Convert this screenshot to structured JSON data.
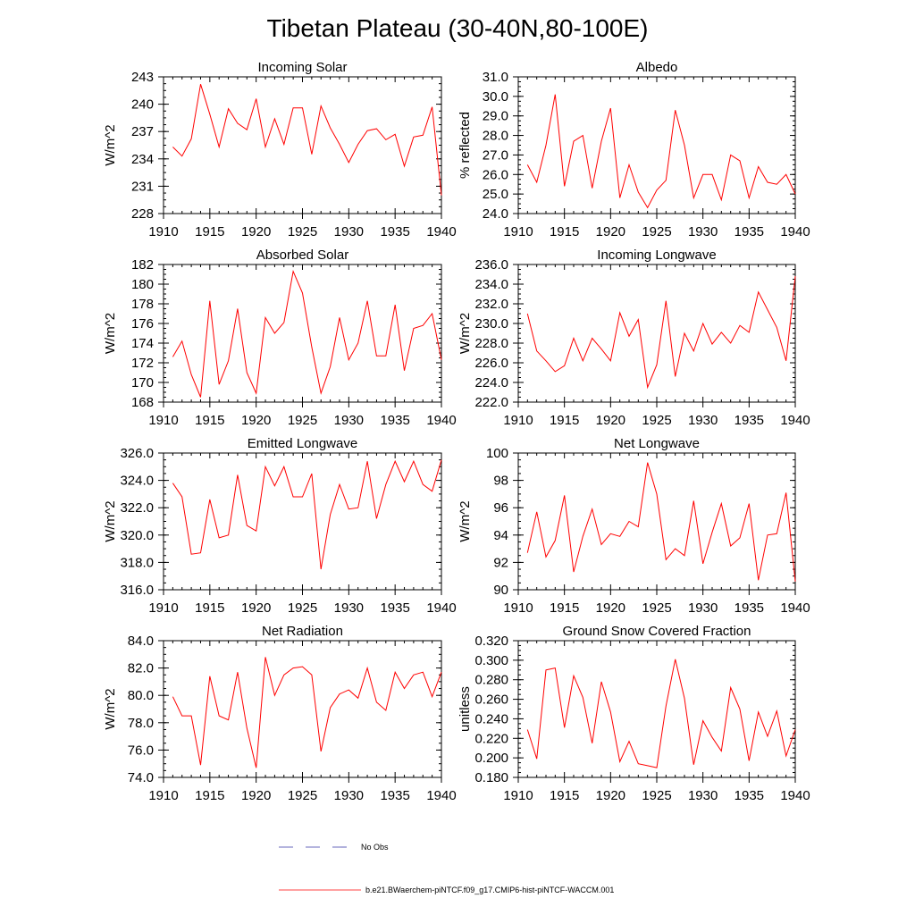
{
  "figure": {
    "title": "Tibetan Plateau (30-40N,80-100E)"
  },
  "legend": {
    "entries": [
      {
        "label": "No Obs",
        "color": "#3a3aa8",
        "style": "dashed"
      },
      {
        "label": "b.e21.BWaerchem-piNTCF.f09_g17.CMIP6-hist-piNTCF-WACCM.001",
        "color": "#ff0000",
        "style": "solid"
      }
    ]
  },
  "chart_data": [
    {
      "type": "line",
      "title": "Incoming Solar",
      "ylabel": "W/m^2",
      "xlim": [
        1910,
        1940
      ],
      "ylim": [
        228,
        243
      ],
      "xticks": [
        "1910",
        "1915",
        "1920",
        "1925",
        "1930",
        "1935",
        "1940"
      ],
      "yticks": [
        "228",
        "231",
        "234",
        "237",
        "240",
        "243"
      ],
      "x": [
        1911,
        1912,
        1913,
        1914,
        1915,
        1916,
        1917,
        1918,
        1919,
        1920,
        1921,
        1922,
        1923,
        1924,
        1925,
        1926,
        1927,
        1928,
        1929,
        1930,
        1931,
        1932,
        1933,
        1934,
        1935,
        1936,
        1937,
        1938,
        1939,
        1940
      ],
      "series": [
        {
          "color": "#ff0000",
          "values": [
            235.3,
            234.3,
            236.2,
            242.2,
            238.9,
            235.3,
            239.5,
            237.9,
            237.2,
            240.6,
            235.3,
            238.4,
            235.6,
            239.6,
            239.6,
            234.5,
            239.8,
            237.4,
            235.6,
            233.6,
            235.6,
            237.1,
            237.3,
            236.1,
            236.7,
            233.2,
            236.4,
            236.6,
            239.7,
            230.0
          ]
        }
      ]
    },
    {
      "type": "line",
      "title": "Albedo",
      "ylabel": "% reflected",
      "xlim": [
        1910,
        1940
      ],
      "ylim": [
        24.0,
        31.0
      ],
      "xticks": [
        "1910",
        "1915",
        "1920",
        "1925",
        "1930",
        "1935",
        "1940"
      ],
      "yticks": [
        "24.0",
        "25.0",
        "26.0",
        "27.0",
        "28.0",
        "29.0",
        "30.0",
        "31.0"
      ],
      "x": [
        1911,
        1912,
        1913,
        1914,
        1915,
        1916,
        1917,
        1918,
        1919,
        1920,
        1921,
        1922,
        1923,
        1924,
        1925,
        1926,
        1927,
        1928,
        1929,
        1930,
        1931,
        1932,
        1933,
        1934,
        1935,
        1936,
        1937,
        1938,
        1939,
        1940
      ],
      "series": [
        {
          "color": "#ff0000",
          "values": [
            26.5,
            25.6,
            27.5,
            30.1,
            25.4,
            27.7,
            28.0,
            25.3,
            27.7,
            29.4,
            24.8,
            26.5,
            25.1,
            24.3,
            25.2,
            25.7,
            29.3,
            27.5,
            24.8,
            26.0,
            26.0,
            24.7,
            27.0,
            26.7,
            24.8,
            26.4,
            25.6,
            25.5,
            26.0,
            25.0
          ]
        }
      ]
    },
    {
      "type": "line",
      "title": "Absorbed Solar",
      "ylabel": "W/m^2",
      "xlim": [
        1910,
        1940
      ],
      "ylim": [
        168,
        182
      ],
      "xticks": [
        "1910",
        "1915",
        "1920",
        "1925",
        "1930",
        "1935",
        "1940"
      ],
      "yticks": [
        "168",
        "170",
        "172",
        "174",
        "176",
        "178",
        "180",
        "182"
      ],
      "x": [
        1911,
        1912,
        1913,
        1914,
        1915,
        1916,
        1917,
        1918,
        1919,
        1920,
        1921,
        1922,
        1923,
        1924,
        1925,
        1926,
        1927,
        1928,
        1929,
        1930,
        1931,
        1932,
        1933,
        1934,
        1935,
        1936,
        1937,
        1938,
        1939,
        1940
      ],
      "series": [
        {
          "color": "#ff0000",
          "values": [
            172.6,
            174.2,
            170.8,
            168.5,
            178.3,
            169.8,
            172.2,
            177.5,
            171.0,
            168.9,
            176.6,
            175.0,
            176.1,
            181.3,
            179.1,
            173.6,
            168.9,
            171.6,
            176.6,
            172.3,
            174.0,
            178.3,
            172.7,
            172.7,
            177.9,
            171.2,
            175.5,
            175.8,
            177.0,
            172.3
          ]
        }
      ]
    },
    {
      "type": "line",
      "title": "Incoming Longwave",
      "ylabel": "W/m^2",
      "xlim": [
        1910,
        1940
      ],
      "ylim": [
        222.0,
        236.0
      ],
      "xticks": [
        "1910",
        "1915",
        "1920",
        "1925",
        "1930",
        "1935",
        "1940"
      ],
      "yticks": [
        "222.0",
        "224.0",
        "226.0",
        "228.0",
        "230.0",
        "232.0",
        "234.0",
        "236.0"
      ],
      "x": [
        1911,
        1912,
        1913,
        1914,
        1915,
        1916,
        1917,
        1918,
        1919,
        1920,
        1921,
        1922,
        1923,
        1924,
        1925,
        1926,
        1927,
        1928,
        1929,
        1930,
        1931,
        1932,
        1933,
        1934,
        1935,
        1936,
        1937,
        1938,
        1939,
        1940
      ],
      "series": [
        {
          "color": "#ff0000",
          "values": [
            231.0,
            227.2,
            226.2,
            225.1,
            225.7,
            228.5,
            226.2,
            228.5,
            227.4,
            226.2,
            231.1,
            228.7,
            230.4,
            223.5,
            225.8,
            232.3,
            224.6,
            229.0,
            227.2,
            230.0,
            227.9,
            229.1,
            228.0,
            229.8,
            229.1,
            233.2,
            231.4,
            229.6,
            226.2,
            234.8
          ]
        }
      ]
    },
    {
      "type": "line",
      "title": "Emitted Longwave",
      "ylabel": "W/m^2",
      "xlim": [
        1910,
        1940
      ],
      "ylim": [
        316.0,
        326.0
      ],
      "xticks": [
        "1910",
        "1915",
        "1920",
        "1925",
        "1930",
        "1935",
        "1940"
      ],
      "yticks": [
        "316.0",
        "318.0",
        "320.0",
        "322.0",
        "324.0",
        "326.0"
      ],
      "x": [
        1911,
        1912,
        1913,
        1914,
        1915,
        1916,
        1917,
        1918,
        1919,
        1920,
        1921,
        1922,
        1923,
        1924,
        1925,
        1926,
        1927,
        1928,
        1929,
        1930,
        1931,
        1932,
        1933,
        1934,
        1935,
        1936,
        1937,
        1938,
        1939,
        1940
      ],
      "series": [
        {
          "color": "#ff0000",
          "values": [
            323.8,
            322.8,
            318.6,
            318.7,
            322.6,
            319.8,
            320.0,
            324.4,
            320.7,
            320.3,
            325.0,
            323.6,
            325.0,
            322.8,
            322.8,
            324.5,
            317.5,
            321.5,
            323.7,
            321.9,
            322.0,
            325.4,
            321.2,
            323.7,
            325.4,
            323.9,
            325.4,
            323.7,
            323.2,
            325.5
          ]
        }
      ]
    },
    {
      "type": "line",
      "title": "Net Longwave",
      "ylabel": "W/m^2",
      "xlim": [
        1910,
        1940
      ],
      "ylim": [
        90,
        100
      ],
      "xticks": [
        "1910",
        "1915",
        "1920",
        "1925",
        "1930",
        "1935",
        "1940"
      ],
      "yticks": [
        "90",
        "92",
        "94",
        "96",
        "98",
        "100"
      ],
      "x": [
        1911,
        1912,
        1913,
        1914,
        1915,
        1916,
        1917,
        1918,
        1919,
        1920,
        1921,
        1922,
        1923,
        1924,
        1925,
        1926,
        1927,
        1928,
        1929,
        1930,
        1931,
        1932,
        1933,
        1934,
        1935,
        1936,
        1937,
        1938,
        1939,
        1940
      ],
      "series": [
        {
          "color": "#ff0000",
          "values": [
            92.7,
            95.7,
            92.4,
            93.6,
            96.9,
            91.3,
            93.9,
            95.9,
            93.3,
            94.1,
            93.9,
            95.0,
            94.6,
            99.3,
            97.0,
            92.2,
            93.0,
            92.5,
            96.5,
            91.9,
            94.2,
            96.3,
            93.2,
            93.8,
            96.3,
            90.7,
            94.0,
            94.1,
            97.1,
            90.6
          ]
        }
      ]
    },
    {
      "type": "line",
      "title": "Net Radiation",
      "ylabel": "W/m^2",
      "xlim": [
        1910,
        1940
      ],
      "ylim": [
        74.0,
        84.0
      ],
      "xticks": [
        "1910",
        "1915",
        "1920",
        "1925",
        "1930",
        "1935",
        "1940"
      ],
      "yticks": [
        "74.0",
        "76.0",
        "78.0",
        "80.0",
        "82.0",
        "84.0"
      ],
      "x": [
        1911,
        1912,
        1913,
        1914,
        1915,
        1916,
        1917,
        1918,
        1919,
        1920,
        1921,
        1922,
        1923,
        1924,
        1925,
        1926,
        1927,
        1928,
        1929,
        1930,
        1931,
        1932,
        1933,
        1934,
        1935,
        1936,
        1937,
        1938,
        1939,
        1940
      ],
      "series": [
        {
          "color": "#ff0000",
          "values": [
            79.9,
            78.5,
            78.5,
            74.9,
            81.4,
            78.5,
            78.2,
            81.7,
            77.6,
            74.7,
            82.8,
            80.0,
            81.5,
            82.0,
            82.1,
            81.5,
            75.9,
            79.1,
            80.1,
            80.4,
            79.8,
            82.0,
            79.5,
            78.9,
            81.7,
            80.5,
            81.5,
            81.7,
            79.9,
            81.7
          ]
        }
      ]
    },
    {
      "type": "line",
      "title": "Ground Snow Covered Fraction",
      "ylabel": "unitless",
      "xlim": [
        1910,
        1940
      ],
      "ylim": [
        0.18,
        0.32
      ],
      "xticks": [
        "1910",
        "1915",
        "1920",
        "1925",
        "1930",
        "1935",
        "1940"
      ],
      "yticks": [
        "0.180",
        "0.200",
        "0.220",
        "0.240",
        "0.260",
        "0.280",
        "0.300",
        "0.320"
      ],
      "x": [
        1911,
        1912,
        1913,
        1914,
        1915,
        1916,
        1917,
        1918,
        1919,
        1920,
        1921,
        1922,
        1923,
        1924,
        1925,
        1926,
        1927,
        1928,
        1929,
        1930,
        1931,
        1932,
        1933,
        1934,
        1935,
        1936,
        1937,
        1938,
        1939,
        1940
      ],
      "series": [
        {
          "color": "#ff0000",
          "values": [
            0.229,
            0.199,
            0.29,
            0.292,
            0.231,
            0.284,
            0.262,
            0.215,
            0.278,
            0.247,
            0.196,
            0.217,
            0.194,
            0.192,
            0.19,
            0.253,
            0.301,
            0.261,
            0.193,
            0.238,
            0.221,
            0.207,
            0.272,
            0.25,
            0.197,
            0.247,
            0.222,
            0.248,
            0.202,
            0.229
          ]
        }
      ]
    }
  ]
}
